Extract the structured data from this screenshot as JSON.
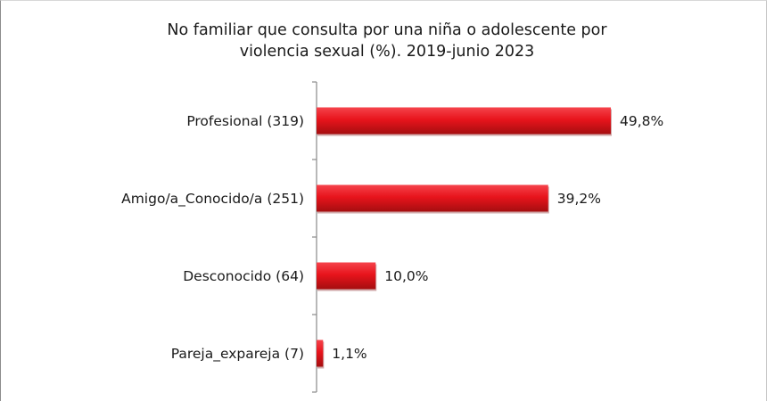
{
  "chart_data": {
    "type": "bar",
    "orientation": "horizontal",
    "title_line1": "No familiar que consulta por una niña o adolescente por",
    "title_line2": "violencia sexual (%).  2019-junio 2023",
    "categories": [
      "Profesional (319)",
      "Amigo/a_Conocido/a (251)",
      "Desconocido (64)",
      "Pareja_expareja (7)"
    ],
    "values": [
      49.8,
      39.2,
      10.0,
      1.1
    ],
    "value_labels": [
      "49,8%",
      "39,2%",
      "10,0%",
      "1,1%"
    ],
    "xlim": [
      0,
      60
    ],
    "grid": false,
    "legend": "none",
    "colors": {
      "bar": "#e8141c",
      "bar_dark": "#a50e10",
      "bar_light": "#f5434b"
    }
  }
}
